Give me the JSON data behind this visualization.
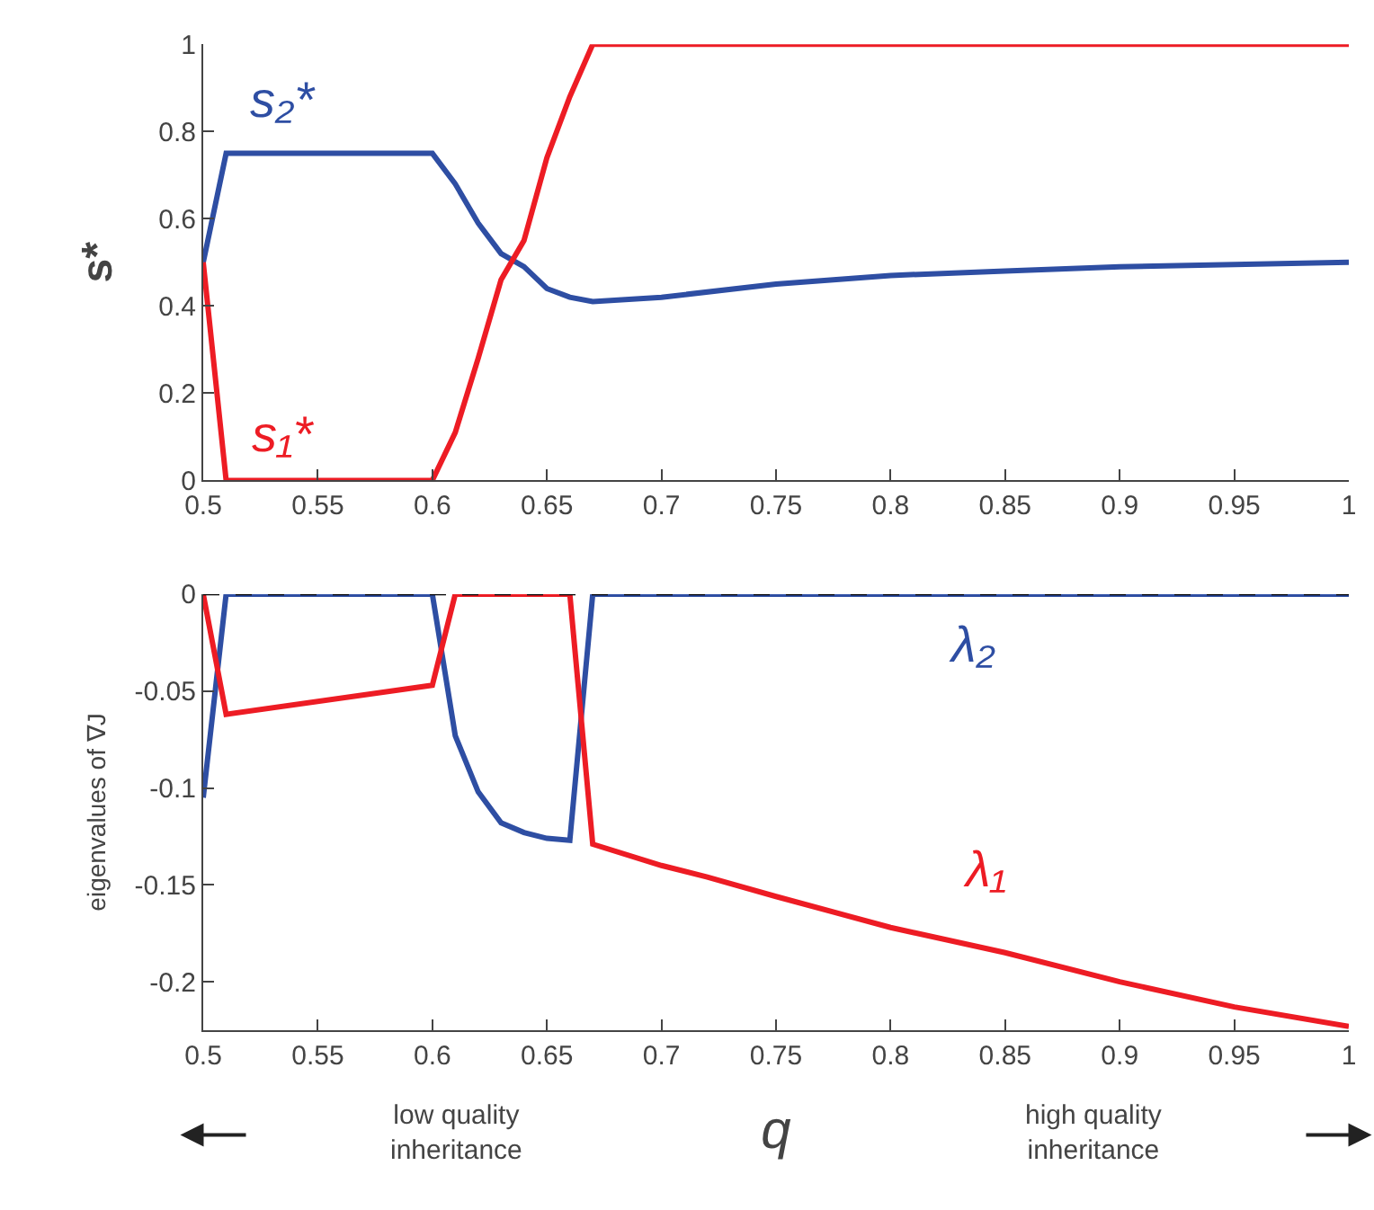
{
  "chart_data": [
    {
      "type": "line",
      "ylabel": "s*",
      "xlim": [
        0.5,
        1
      ],
      "xticks": [
        0.5,
        0.55,
        0.6,
        0.65,
        0.7,
        0.75,
        0.8,
        0.85,
        0.9,
        0.95,
        1
      ],
      "ylim": [
        0,
        1
      ],
      "yticks": [
        0,
        0.2,
        0.4,
        0.6,
        0.8,
        1
      ],
      "marker": "none",
      "line_style": "solid",
      "series": [
        {
          "name": "s₂*",
          "color": "#2e4ea3",
          "x": [
            0.5,
            0.51,
            0.6,
            0.61,
            0.62,
            0.63,
            0.64,
            0.65,
            0.66,
            0.67,
            0.7,
            0.75,
            0.8,
            0.85,
            0.9,
            0.95,
            1
          ],
          "values": [
            0.5,
            0.75,
            0.75,
            0.68,
            0.59,
            0.52,
            0.49,
            0.44,
            0.42,
            0.41,
            0.42,
            0.45,
            0.47,
            0.48,
            0.49,
            0.495,
            0.5
          ]
        },
        {
          "name": "s₁*",
          "color": "#ed1c24",
          "x": [
            0.5,
            0.51,
            0.6,
            0.61,
            0.62,
            0.63,
            0.64,
            0.65,
            0.66,
            0.67,
            1
          ],
          "values": [
            0.5,
            0,
            0,
            0.11,
            0.28,
            0.46,
            0.55,
            0.74,
            0.88,
            1,
            1
          ]
        }
      ]
    },
    {
      "type": "line",
      "ylabel": "eigenvalues of ∇J",
      "xlabel": "q",
      "xlim": [
        0.5,
        1
      ],
      "xticks": [
        0.5,
        0.55,
        0.6,
        0.65,
        0.7,
        0.75,
        0.8,
        0.85,
        0.9,
        0.95,
        1
      ],
      "ylim": [
        -0.225,
        0
      ],
      "yticks": [
        -0.2,
        -0.15,
        -0.1,
        -0.05,
        0
      ],
      "marker": "none",
      "line_style": "solid",
      "series": [
        {
          "name": "λ₂",
          "color": "#2e4ea3",
          "x": [
            0.5,
            0.51,
            0.6,
            0.61,
            0.62,
            0.63,
            0.64,
            0.65,
            0.66,
            0.67,
            1
          ],
          "values": [
            -0.105,
            0,
            0,
            -0.073,
            -0.102,
            -0.118,
            -0.123,
            -0.126,
            -0.127,
            0,
            0
          ]
        },
        {
          "name": "λ₁",
          "color": "#ed1c24",
          "x": [
            0.5,
            0.51,
            0.6,
            0.61,
            0.66,
            0.67,
            0.7,
            0.72,
            0.75,
            0.8,
            0.85,
            0.9,
            0.95,
            1
          ],
          "values": [
            0,
            -0.062,
            -0.047,
            0,
            0,
            -0.129,
            -0.14,
            -0.146,
            -0.156,
            -0.172,
            -0.185,
            -0.2,
            -0.213,
            -0.223
          ]
        }
      ],
      "ref_lines": [
        {
          "axis": "y",
          "value": 0,
          "color": "#000000",
          "line_style": "dashed"
        }
      ],
      "annotations": [
        "low quality\ninheritance",
        "high quality\ninheritance"
      ]
    }
  ]
}
